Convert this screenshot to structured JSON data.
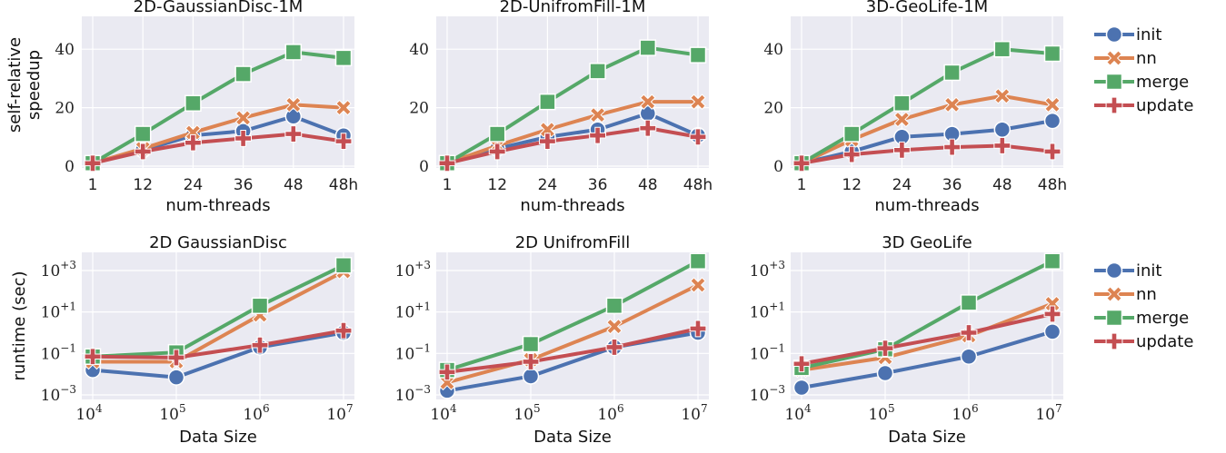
{
  "colors": {
    "init": "#4C72B0",
    "nn": "#DD8452",
    "merge": "#55A868",
    "update": "#C44E52",
    "plot_bg": "#EAEAF2",
    "grid": "#FFFFFF"
  },
  "legend_items": [
    "init",
    "nn",
    "merge",
    "update"
  ],
  "chart_data": [
    {
      "type": "line",
      "title": "2D-GaussianDisc-1M",
      "xlabel": "num-threads",
      "ylabel": "self-relative speedup",
      "categories": [
        "1",
        "12",
        "24",
        "36",
        "48",
        "48h"
      ],
      "yticks": [
        "0",
        "20",
        "40"
      ],
      "ytick_values": [
        0,
        20,
        40
      ],
      "ylim": [
        0,
        50
      ],
      "yscale": "linear",
      "series": [
        {
          "name": "init",
          "values": [
            1,
            5.5,
            10.5,
            12,
            17,
            10.5
          ]
        },
        {
          "name": "nn",
          "values": [
            1,
            6,
            11.5,
            16.5,
            21,
            20
          ]
        },
        {
          "name": "merge",
          "values": [
            1,
            11,
            21.5,
            31.5,
            39,
            37
          ]
        },
        {
          "name": "update",
          "values": [
            1,
            5,
            8,
            9.5,
            11,
            8.5
          ]
        }
      ]
    },
    {
      "type": "line",
      "title": "2D-UnifromFill-1M",
      "xlabel": "num-threads",
      "ylabel": "",
      "categories": [
        "1",
        "12",
        "24",
        "36",
        "48",
        "48h"
      ],
      "yticks": [
        "0",
        "20",
        "40"
      ],
      "ytick_values": [
        0,
        20,
        40
      ],
      "ylim": [
        0,
        50
      ],
      "yscale": "linear",
      "series": [
        {
          "name": "init",
          "values": [
            1,
            6,
            10,
            12.5,
            18,
            10.5
          ]
        },
        {
          "name": "nn",
          "values": [
            1,
            7,
            12.5,
            17.5,
            22,
            22
          ]
        },
        {
          "name": "merge",
          "values": [
            1,
            11,
            22,
            32.5,
            40.5,
            38
          ]
        },
        {
          "name": "update",
          "values": [
            1,
            5,
            8.5,
            10.5,
            13,
            10
          ]
        }
      ]
    },
    {
      "type": "line",
      "title": "3D-GeoLife-1M",
      "xlabel": "num-threads",
      "ylabel": "",
      "categories": [
        "1",
        "12",
        "24",
        "36",
        "48",
        "48h"
      ],
      "yticks": [
        "0",
        "20",
        "40"
      ],
      "ytick_values": [
        0,
        20,
        40
      ],
      "ylim": [
        0,
        50
      ],
      "yscale": "linear",
      "series": [
        {
          "name": "init",
          "values": [
            1,
            5,
            10,
            11,
            12.5,
            15.5
          ]
        },
        {
          "name": "nn",
          "values": [
            1,
            9,
            16,
            21,
            24,
            21
          ]
        },
        {
          "name": "merge",
          "values": [
            1,
            11,
            21.5,
            32,
            40,
            38.5
          ]
        },
        {
          "name": "update",
          "values": [
            1,
            4,
            5.5,
            6.5,
            7,
            5
          ]
        }
      ]
    },
    {
      "type": "line",
      "title": "2D GaussianDisc",
      "xlabel": "Data Size",
      "ylabel": "runtime (sec)",
      "categories_base": "10",
      "categories_exp": [
        "4",
        "5",
        "6",
        "7"
      ],
      "yticks_base": "10",
      "yticks_exp": [
        "−3",
        "−1",
        "+1",
        "+3"
      ],
      "ytick_values": [
        -3,
        -1,
        1,
        3
      ],
      "ylim_log10": [
        -3,
        3.7
      ],
      "yscale": "log",
      "series": [
        {
          "name": "init",
          "log10_values": [
            -1.8,
            -2.15,
            -0.7,
            0.0
          ]
        },
        {
          "name": "nn",
          "log10_values": [
            -1.4,
            -1.4,
            0.85,
            2.95
          ]
        },
        {
          "name": "merge",
          "log10_values": [
            -1.15,
            -0.95,
            1.3,
            3.25
          ]
        },
        {
          "name": "update",
          "log10_values": [
            -1.15,
            -1.2,
            -0.6,
            0.1
          ]
        }
      ]
    },
    {
      "type": "line",
      "title": "2D UnifromFill",
      "xlabel": "Data Size",
      "ylabel": "",
      "categories_base": "10",
      "categories_exp": [
        "4",
        "5",
        "6",
        "7"
      ],
      "yticks_base": "10",
      "yticks_exp": [
        "−3",
        "−1",
        "+1",
        "+3"
      ],
      "ytick_values": [
        -3,
        -1,
        1,
        3
      ],
      "ylim_log10": [
        -3,
        3.7
      ],
      "yscale": "log",
      "series": [
        {
          "name": "init",
          "log10_values": [
            -2.8,
            -2.1,
            -0.7,
            0.0
          ]
        },
        {
          "name": "nn",
          "log10_values": [
            -2.4,
            -1.3,
            0.3,
            2.3
          ]
        },
        {
          "name": "merge",
          "log10_values": [
            -1.8,
            -0.55,
            1.3,
            3.45
          ]
        },
        {
          "name": "update",
          "log10_values": [
            -1.9,
            -1.4,
            -0.7,
            0.2
          ]
        }
      ]
    },
    {
      "type": "line",
      "title": "3D GeoLife",
      "xlabel": "Data Size",
      "ylabel": "",
      "categories_base": "10",
      "categories_exp": [
        "4",
        "5",
        "6",
        "7"
      ],
      "yticks_base": "10",
      "yticks_exp": [
        "−3",
        "−1",
        "+1",
        "+3"
      ],
      "ytick_values": [
        -3,
        -1,
        1,
        3
      ],
      "ylim_log10": [
        -3,
        3.7
      ],
      "yscale": "log",
      "series": [
        {
          "name": "init",
          "log10_values": [
            -2.65,
            -1.95,
            -1.15,
            0.05
          ]
        },
        {
          "name": "nn",
          "log10_values": [
            -1.8,
            -1.2,
            -0.15,
            1.4
          ]
        },
        {
          "name": "merge",
          "log10_values": [
            -1.7,
            -0.8,
            1.45,
            3.45
          ]
        },
        {
          "name": "update",
          "log10_values": [
            -1.5,
            -0.75,
            0.0,
            0.9
          ]
        }
      ]
    }
  ]
}
